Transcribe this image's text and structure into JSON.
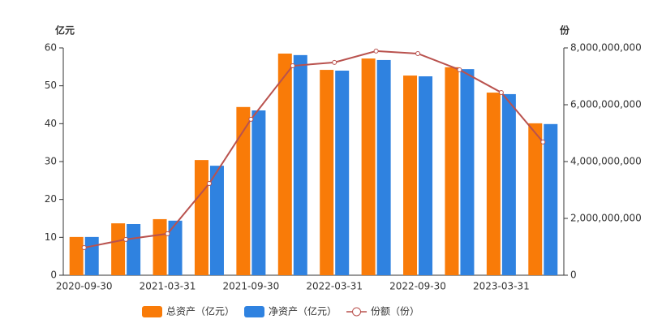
{
  "chart_data": {
    "type": "bar-line",
    "y_label": "亿元",
    "y2_label": "份",
    "categories": [
      "2020-09-30",
      null,
      "2021-03-31",
      null,
      "2021-09-30",
      null,
      "2022-03-31",
      null,
      "2022-09-30",
      null,
      "2023-03-31",
      null
    ],
    "series": [
      {
        "name": "总资产（亿元）",
        "type": "bar",
        "color": "#f97b08",
        "values": [
          10.1,
          13.7,
          14.8,
          30.4,
          44.4,
          58.5,
          54.2,
          57.2,
          52.7,
          54.9,
          48.2,
          40.1
        ]
      },
      {
        "name": "净资产（亿元）",
        "type": "bar",
        "color": "#2f82e0",
        "values": [
          10.1,
          13.5,
          14.4,
          28.9,
          43.5,
          58.1,
          54.0,
          56.8,
          52.5,
          54.4,
          47.8,
          39.9
        ]
      },
      {
        "name": "份额（份）",
        "type": "line",
        "axis": "y2",
        "color": "#b9524e",
        "values": [
          970000000,
          1260000000,
          1460000000,
          3230000000,
          5490000000,
          7370000000,
          7490000000,
          7890000000,
          7800000000,
          7230000000,
          6430000000,
          4690000000
        ]
      }
    ],
    "ylim": [
      0,
      60
    ],
    "yticks": [
      0,
      10,
      20,
      30,
      40,
      50,
      60
    ],
    "y2lim": [
      0,
      8000000000
    ],
    "y2ticks": [
      0,
      {
        "value": 2000000000,
        "label": "2,000,000,000"
      },
      {
        "value": 4000000000,
        "label": "4,000,000,000"
      },
      {
        "value": 6000000000,
        "label": "6,000,000,000"
      },
      {
        "value": 8000000000,
        "label": "8,000,000,000"
      }
    ],
    "legend": "bottom"
  }
}
